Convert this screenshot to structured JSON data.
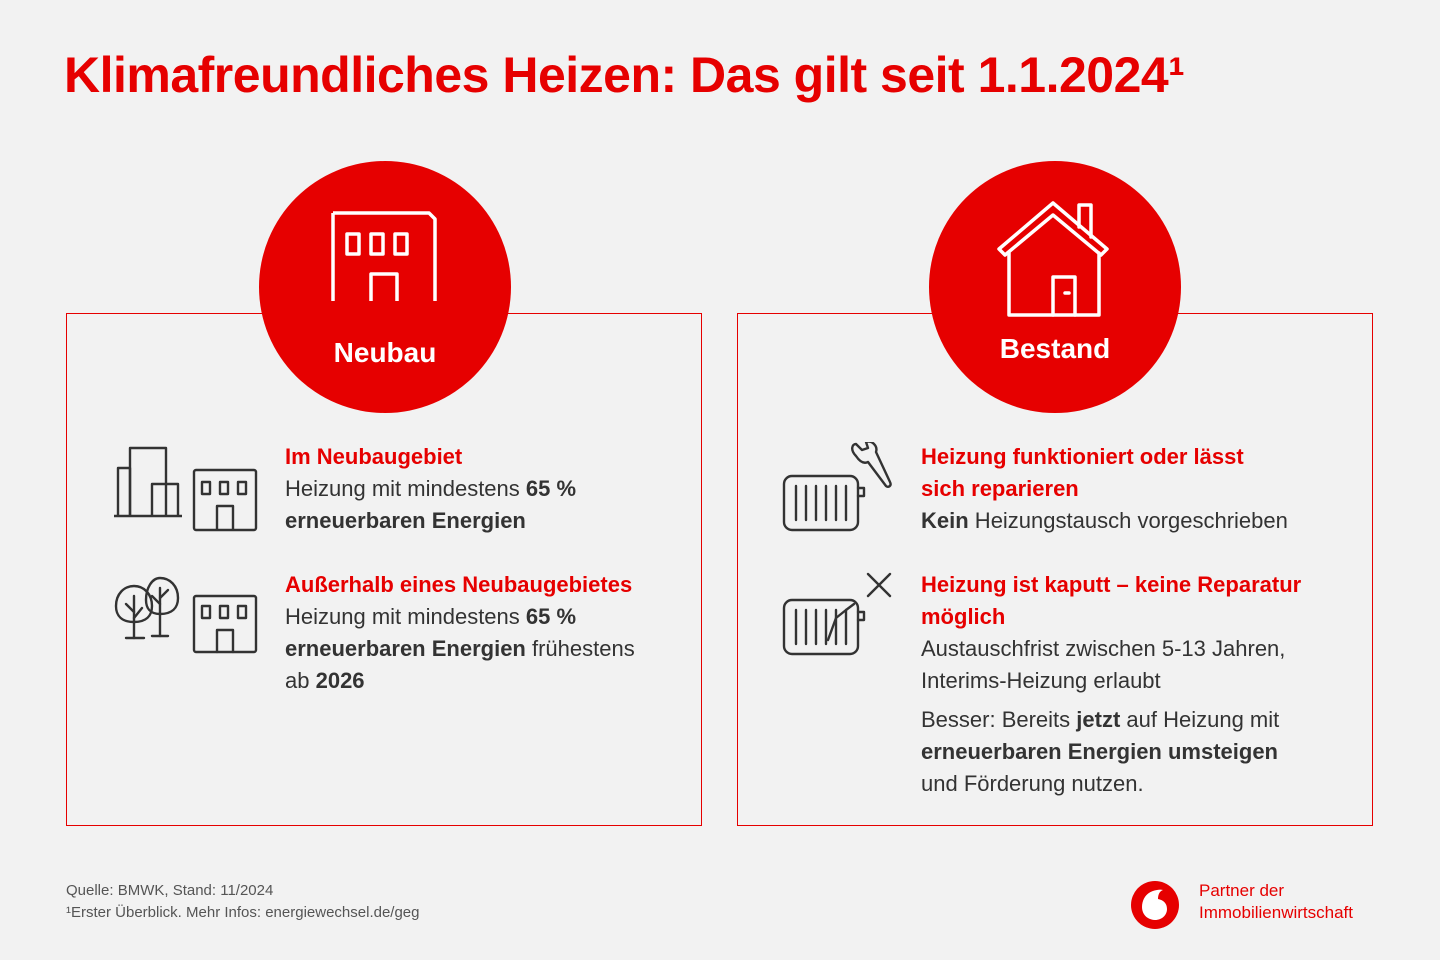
{
  "title": "Klimafreundliches Heizen: Das gilt seit 1.1.2024¹",
  "colors": {
    "accent": "#e60000",
    "background": "#f2f2f2",
    "text": "#333333"
  },
  "neubau": {
    "label": "Neubau",
    "items": [
      {
        "heading": "Im Neubaugebiet",
        "text_1": "Heizung mit mindestens ",
        "bold_1": "65 %",
        "bold_2": "erneuerbaren Energien"
      },
      {
        "heading": "Außerhalb eines Neubaugebietes",
        "text_1": "Heizung mit mindestens ",
        "bold_1": "65 %",
        "bold_2": "erneuerbaren Energien",
        "text_2": " frühestens",
        "text_3": "ab ",
        "bold_3": "2026"
      }
    ]
  },
  "bestand": {
    "label": "Bestand",
    "items": [
      {
        "heading_1": "Heizung funktioniert oder lässt",
        "heading_2": "sich reparieren",
        "bold_1": "Kein",
        "text_1": " Heizungstausch vorgeschrieben"
      },
      {
        "heading_1": "Heizung ist kaputt – keine Reparatur",
        "heading_2": "möglich",
        "text_1": "Austauschfrist zwischen 5-13 Jahren,",
        "text_2": "Interims-Heizung erlaubt",
        "text_3": "Besser: Bereits ",
        "bold_1": "jetzt",
        "text_4": " auf Heizung mit",
        "bold_2": "erneuerbaren Energien umsteigen",
        "text_5": "und Förderung nutzen."
      }
    ]
  },
  "footer": {
    "source": "Quelle: BMWK, Stand: 11/2024",
    "note": "¹Erster Überblick. Mehr Infos: energiewechsel.de/geg"
  },
  "brand": {
    "line_1": "Partner der",
    "line_2": "Immobilienwirtschaft"
  }
}
